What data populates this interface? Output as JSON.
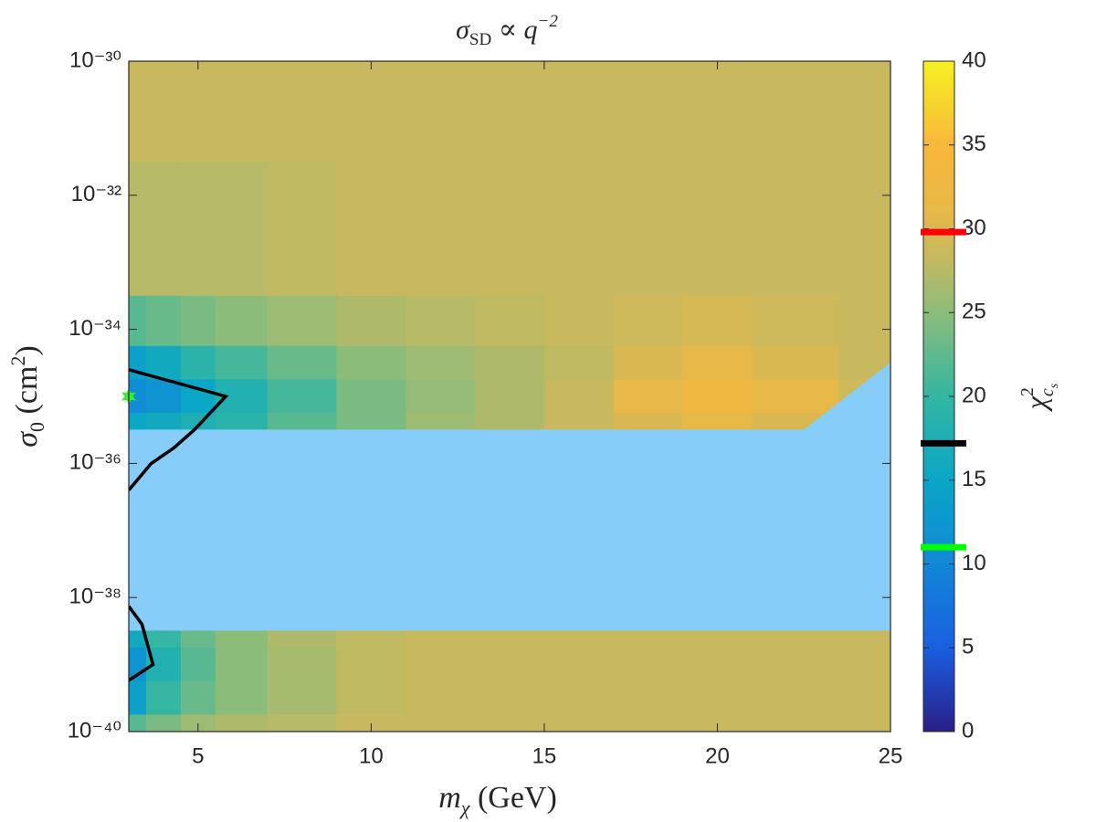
{
  "chart_data": {
    "type": "contour",
    "title": [
      "σ",
      "SD",
      " ∝ ",
      "q",
      "−2"
    ],
    "x_label": [
      "m",
      "χ",
      " (GeV)"
    ],
    "y_label": [
      "σ",
      "0",
      " (cm",
      "2",
      ")"
    ],
    "colorbar_label": [
      "χ",
      "2",
      "c",
      "s"
    ],
    "xlim": [
      3,
      25
    ],
    "xticks": [
      5,
      10,
      15,
      20,
      25
    ],
    "ylim": [
      1e-40,
      1e-30
    ],
    "log_y": true,
    "yticks": [
      {
        "value": 1e-30,
        "label": "10⁻³⁰"
      },
      {
        "value": 1e-32,
        "label": "10⁻³²"
      },
      {
        "value": 1e-34,
        "label": "10⁻³⁴"
      },
      {
        "value": 1e-36,
        "label": "10⁻³⁶"
      },
      {
        "value": 1e-38,
        "label": "10⁻³⁸"
      },
      {
        "value": 1e-40,
        "label": "10⁻⁴⁰"
      }
    ],
    "clim": [
      0,
      40
    ],
    "cticks": [
      0,
      5,
      10,
      15,
      20,
      25,
      30,
      35,
      40
    ],
    "colormap": [
      {
        "value": 0,
        "color": "#2a1f8a"
      },
      {
        "value": 5,
        "color": "#1a5fe0"
      },
      {
        "value": 10,
        "color": "#1287d8"
      },
      {
        "value": 15,
        "color": "#0aa6c6"
      },
      {
        "value": 20,
        "color": "#34b6a2"
      },
      {
        "value": 25,
        "color": "#8cbc7a"
      },
      {
        "value": 28.5,
        "color": "#c8b95e"
      },
      {
        "value": 31,
        "color": "#e6b848"
      },
      {
        "value": 35,
        "color": "#f8b83a"
      },
      {
        "value": 40,
        "color": "#f6f020"
      }
    ],
    "field": {
      "x": [
        3,
        4,
        5,
        6,
        8,
        10,
        12,
        14,
        16,
        18,
        20,
        22,
        25
      ],
      "y": [
        1e-30,
        1e-33,
        1e-34,
        3.2e-35,
        1e-35,
        3.2e-36,
        3.2e-39,
        1e-39,
        3.2e-40,
        1e-40
      ],
      "values": [
        [
          28.5,
          28.5,
          28.5,
          28.5,
          28.5,
          28.5,
          28.5,
          28.5,
          28.5,
          28.5,
          28.5,
          28.5,
          28.5
        ],
        [
          27.5,
          27.5,
          27.5,
          27.5,
          28,
          28.5,
          28.5,
          28.5,
          28.5,
          28.5,
          28.5,
          28.5,
          28.5
        ],
        [
          22,
          23,
          24,
          25,
          26,
          27,
          27.5,
          28,
          28.5,
          29,
          29.5,
          29,
          28.5
        ],
        [
          14,
          16,
          19,
          21,
          23,
          25,
          26,
          27,
          28,
          30,
          31,
          30,
          28.5
        ],
        [
          11,
          12,
          15,
          18,
          21,
          24,
          25.5,
          27,
          28.5,
          31,
          33,
          31,
          29
        ],
        [
          15,
          16,
          17.5,
          19,
          22,
          24,
          26,
          27,
          28.5,
          30,
          31,
          30,
          29
        ],
        [
          16,
          20,
          23,
          25,
          27,
          28,
          28.5,
          28.5,
          28.5,
          28.5,
          28.5,
          28.5,
          28.5
        ],
        [
          12,
          18,
          22,
          25,
          26.5,
          28,
          28.5,
          28.5,
          28.5,
          28.5,
          28.5,
          28.5,
          28.5
        ],
        [
          14,
          20,
          23,
          25,
          26.5,
          28,
          28.5,
          28.5,
          28.5,
          28.5,
          28.5,
          28.5,
          28.5
        ],
        [
          22,
          24,
          26,
          27,
          27.5,
          28.5,
          28.5,
          28.5,
          28.5,
          28.5,
          28.5,
          28.5,
          28.5
        ]
      ]
    },
    "excluded_region": {
      "color": "#87cdf9",
      "x": [
        3,
        22.5,
        25,
        25,
        3
      ],
      "y": [
        3.2e-36,
        3.2e-36,
        3.2e-35,
        3.2e-39,
        3.2e-39
      ]
    },
    "contours": [
      {
        "color": "#000000",
        "x": [
          3,
          5.8,
          4.9,
          4.3,
          3.65,
          3
        ],
        "y": [
          2.5e-35,
          1e-35,
          3.2e-36,
          1.7e-36,
          1e-36,
          4e-37
        ]
      },
      {
        "color": "#000000",
        "x": [
          3,
          3.38,
          3.7,
          3
        ],
        "y": [
          7.4e-39,
          4e-39,
          1e-39,
          5.8e-40
        ]
      }
    ],
    "best_fit": {
      "x": 3,
      "y": 1e-35,
      "color": "#33ee33"
    },
    "colorbar_markers": [
      {
        "value": 29.8,
        "color": "#ff0000"
      },
      {
        "value": 17.2,
        "color": "#000000"
      },
      {
        "value": 11,
        "color": "#00ff00"
      }
    ]
  }
}
